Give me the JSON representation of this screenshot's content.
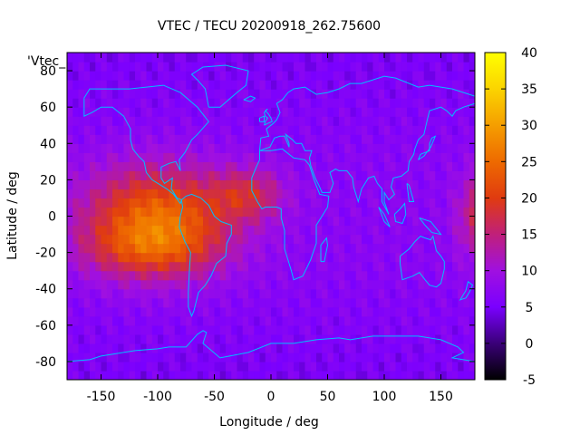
{
  "chart_data": {
    "type": "heatmap",
    "title": "VTEC / TECU 20200918_262.75600",
    "xlabel": "Longitude / deg",
    "ylabel": "Latitude / deg",
    "legend_entry": "'Vtec_",
    "xlim": [
      -180,
      180
    ],
    "ylim": [
      -90,
      90
    ],
    "x_ticks": [
      -150,
      -100,
      -50,
      0,
      50,
      100,
      150
    ],
    "y_ticks": [
      -80,
      -60,
      -40,
      -20,
      0,
      20,
      40,
      60,
      80
    ],
    "colorbar": {
      "range": [
        -5,
        40
      ],
      "ticks": [
        -5,
        0,
        5,
        10,
        15,
        20,
        25,
        30,
        35,
        40
      ],
      "palette": [
        "#000000",
        "#3a0078",
        "#7a00ff",
        "#a010e0",
        "#c0207a",
        "#e03b10",
        "#ee6a00",
        "#f59e00",
        "#fbd400",
        "#ffff00"
      ]
    },
    "grid": false,
    "background_value": 7,
    "features": [
      {
        "name": "equatorial-anomaly-americas",
        "lon": -100,
        "lat": 0,
        "peak": 25
      },
      {
        "name": "crest-south-america",
        "lon": -110,
        "lat": -15,
        "peak": 20
      },
      {
        "name": "tail-atlantic-west-africa",
        "lon": -20,
        "lat": 15,
        "peak": 18
      },
      {
        "name": "pacific-eastern-edge",
        "lon": 178,
        "lat": 0,
        "peak": 17
      },
      {
        "name": "low-polar-regions",
        "lon": 0,
        "lat": 80,
        "peak": 4
      }
    ],
    "coastline_color": "#00bfff"
  }
}
